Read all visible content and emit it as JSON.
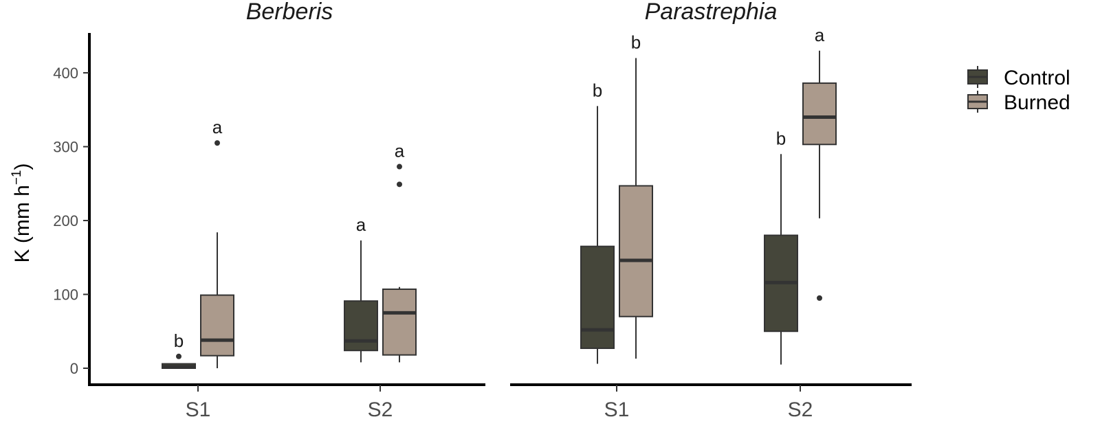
{
  "chart_data": {
    "type": "boxplot",
    "ylabel_main": "K (mm h",
    "ylabel_sup": "−1",
    "ylabel_close": ")",
    "ylim": [
      0,
      450
    ],
    "yticks": [
      "0",
      "100",
      "200",
      "300",
      "400"
    ],
    "ytick_values": [
      0,
      100,
      200,
      300,
      400
    ],
    "categories": [
      "S1",
      "S2"
    ],
    "legend": {
      "placement": "right",
      "entries": [
        {
          "name": "Control",
          "color": "#45463a"
        },
        {
          "name": "Burned",
          "color": "#ab9a8c"
        }
      ]
    },
    "panels": [
      {
        "title": "Berberis",
        "groups": [
          {
            "category": "S1",
            "boxes": [
              {
                "series": "Control",
                "min": 0,
                "q1": 0,
                "median": 2,
                "q3": 6,
                "max": 6,
                "outliers": [
                  16
                ],
                "letter": "b"
              },
              {
                "series": "Burned",
                "min": 0,
                "q1": 17,
                "median": 38,
                "q3": 99,
                "max": 184,
                "outliers": [
                  305
                ],
                "letter": "a"
              }
            ]
          },
          {
            "category": "S2",
            "boxes": [
              {
                "series": "Control",
                "min": 8,
                "q1": 24,
                "median": 37,
                "q3": 91,
                "max": 173,
                "outliers": [],
                "letter": "a"
              },
              {
                "series": "Burned",
                "min": 8,
                "q1": 18,
                "median": 75,
                "q3": 107,
                "max": 110,
                "outliers": [
                  249,
                  273
                ],
                "letter": "a"
              }
            ]
          }
        ]
      },
      {
        "title": "Parastrephia",
        "groups": [
          {
            "category": "S1",
            "boxes": [
              {
                "series": "Control",
                "min": 6,
                "q1": 27,
                "median": 52,
                "q3": 165,
                "max": 355,
                "outliers": [],
                "letter": "b"
              },
              {
                "series": "Burned",
                "min": 13,
                "q1": 70,
                "median": 146,
                "q3": 247,
                "max": 420,
                "outliers": [],
                "letter": "b"
              }
            ]
          },
          {
            "category": "S2",
            "boxes": [
              {
                "series": "Control",
                "min": 5,
                "q1": 50,
                "median": 116,
                "q3": 180,
                "max": 290,
                "outliers": [],
                "letter": "b"
              },
              {
                "series": "Burned",
                "min": 203,
                "q1": 303,
                "median": 340,
                "q3": 386,
                "max": 430,
                "outliers": [
                  95
                ],
                "letter": "a"
              }
            ]
          }
        ]
      }
    ]
  }
}
